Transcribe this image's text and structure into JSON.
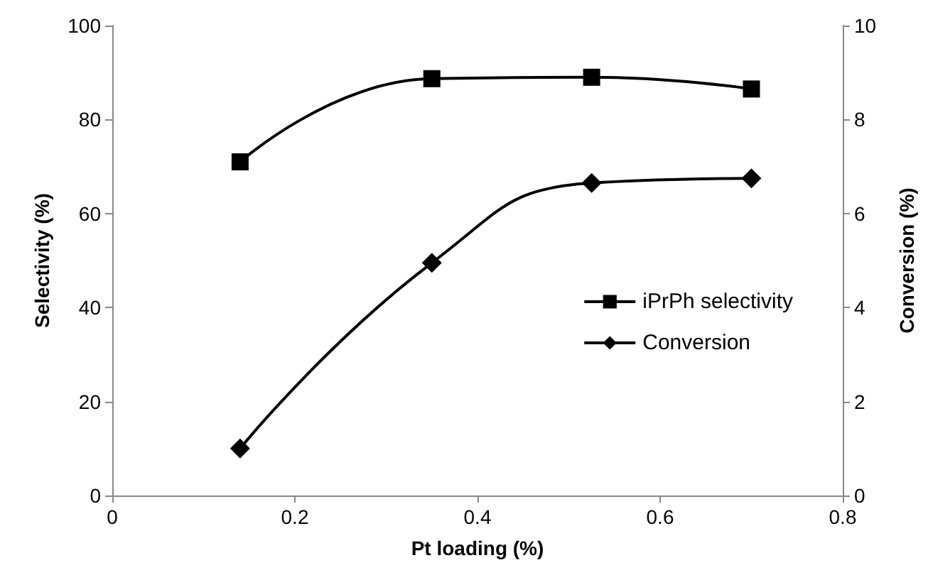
{
  "chart_data": {
    "type": "line",
    "xlabel": "Pt loading (%)",
    "ylabel": "Selectivity (%)",
    "y2label": "Conversion (%)",
    "xlim": [
      0,
      0.8
    ],
    "xticks": [
      0,
      0.2,
      0.4,
      0.6,
      0.8
    ],
    "ylim": [
      0,
      100
    ],
    "yticks": [
      0,
      20,
      40,
      60,
      80,
      100
    ],
    "y2lim": [
      0,
      10
    ],
    "y2ticks": [
      0,
      2,
      4,
      6,
      8,
      10
    ],
    "x": [
      0.14,
      0.35,
      0.525,
      0.7
    ],
    "series": [
      {
        "name": "iPrPh selectivity",
        "color": "#000000",
        "marker": "square",
        "values": [
          71,
          88.7,
          89,
          86.5
        ]
      },
      {
        "name": "Conversion",
        "color": "#000000",
        "marker": "diamond",
        "axis": "y2",
        "values": [
          1.0,
          4.95,
          6.65,
          6.75
        ]
      }
    ],
    "grid": false,
    "legend": "right",
    "line_style": "solid"
  }
}
